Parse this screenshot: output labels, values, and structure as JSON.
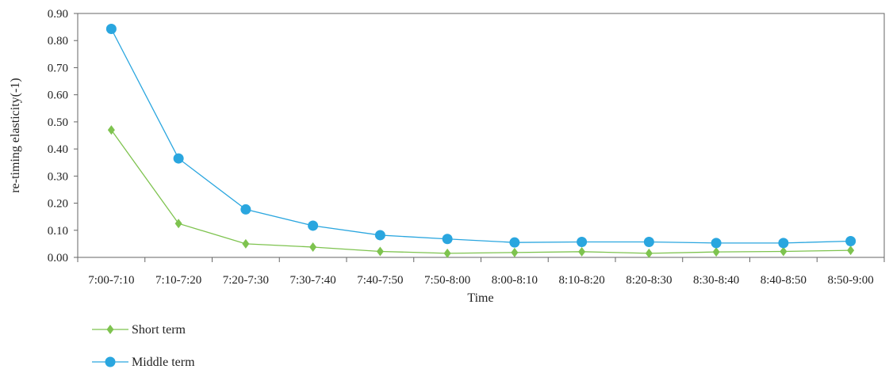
{
  "chart_data": {
    "type": "line",
    "title": "",
    "xlabel": "Time",
    "ylabel": "re-timing elasticity(-1)",
    "categories": [
      "7:00-7:10",
      "7:10-7:20",
      "7:20-7:30",
      "7:30-7:40",
      "7:40-7:50",
      "7:50-8:00",
      "8:00-8:10",
      "8:10-8:20",
      "8:20-8:30",
      "8:30-8:40",
      "8:40-8:50",
      "8:50-9:00"
    ],
    "ylim": [
      0,
      0.9
    ],
    "yticks": [
      "0.00",
      "0.10",
      "0.20",
      "0.30",
      "0.40",
      "0.50",
      "0.60",
      "0.70",
      "0.80",
      "0.90"
    ],
    "grid": false,
    "legend_position": "bottom-left",
    "series": [
      {
        "name": "Short term",
        "color": "#7ec34f",
        "marker": "diamond",
        "values": [
          0.47,
          0.125,
          0.05,
          0.038,
          0.022,
          0.015,
          0.018,
          0.021,
          0.015,
          0.02,
          0.022,
          0.026
        ]
      },
      {
        "name": "Middle term",
        "color": "#2aa6df",
        "marker": "circle",
        "values": [
          0.843,
          0.365,
          0.177,
          0.117,
          0.082,
          0.068,
          0.055,
          0.057,
          0.057,
          0.053,
          0.053,
          0.06
        ]
      }
    ]
  }
}
